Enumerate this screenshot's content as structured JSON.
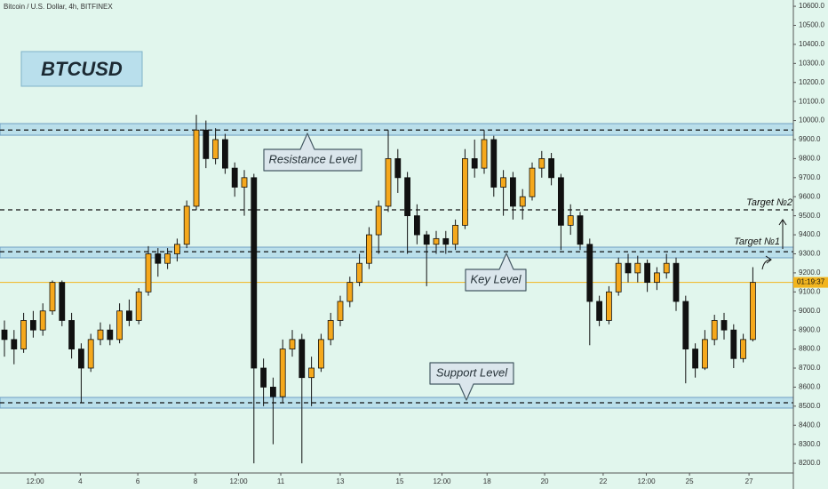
{
  "chart_data": {
    "type": "candlestick",
    "title": "Bitcoin / U.S. Dollar, 4h, BITFINEX",
    "symbol_label": "BTCUSD",
    "background": "#e1f6ed",
    "up_color": "#f5a81c",
    "down_color": "#111111",
    "candles": [
      [
        8900,
        8950,
        8760,
        8850
      ],
      [
        8850,
        8900,
        8720,
        8800
      ],
      [
        8800,
        8990,
        8780,
        8950
      ],
      [
        8950,
        9000,
        8860,
        8900
      ],
      [
        8900,
        9040,
        8870,
        9000
      ],
      [
        9000,
        9160,
        8980,
        9150
      ],
      [
        9150,
        9160,
        8920,
        8950
      ],
      [
        8950,
        8990,
        8750,
        8800
      ],
      [
        8800,
        8830,
        8520,
        8700
      ],
      [
        8700,
        8880,
        8680,
        8850
      ],
      [
        8850,
        8940,
        8820,
        8900
      ],
      [
        8900,
        8930,
        8820,
        8850
      ],
      [
        8850,
        9040,
        8830,
        9000
      ],
      [
        9000,
        9060,
        8920,
        8950
      ],
      [
        8950,
        9120,
        8930,
        9100
      ],
      [
        9100,
        9340,
        9080,
        9300
      ],
      [
        9300,
        9330,
        9180,
        9250
      ],
      [
        9250,
        9330,
        9220,
        9300
      ],
      [
        9300,
        9380,
        9260,
        9350
      ],
      [
        9350,
        9580,
        9330,
        9550
      ],
      [
        9550,
        10030,
        9530,
        9950
      ],
      [
        9950,
        10000,
        9750,
        9800
      ],
      [
        9800,
        9960,
        9770,
        9900
      ],
      [
        9900,
        9930,
        9720,
        9750
      ],
      [
        9750,
        9780,
        9600,
        9650
      ],
      [
        9650,
        9740,
        9500,
        9700
      ],
      [
        9700,
        9720,
        8200,
        8700
      ],
      [
        8700,
        8750,
        8500,
        8600
      ],
      [
        8600,
        8650,
        8300,
        8550
      ],
      [
        8550,
        8850,
        8520,
        8800
      ],
      [
        8800,
        8900,
        8760,
        8850
      ],
      [
        8850,
        8880,
        8200,
        8650
      ],
      [
        8650,
        8760,
        8500,
        8700
      ],
      [
        8700,
        8880,
        8680,
        8850
      ],
      [
        8850,
        8990,
        8820,
        8950
      ],
      [
        8950,
        9080,
        8920,
        9050
      ],
      [
        9050,
        9180,
        9020,
        9150
      ],
      [
        9150,
        9300,
        9130,
        9250
      ],
      [
        9250,
        9440,
        9220,
        9400
      ],
      [
        9400,
        9580,
        9300,
        9550
      ],
      [
        9550,
        9950,
        9520,
        9800
      ],
      [
        9800,
        9850,
        9620,
        9700
      ],
      [
        9700,
        9730,
        9300,
        9500
      ],
      [
        9500,
        9560,
        9350,
        9400
      ],
      [
        9400,
        9420,
        9130,
        9350
      ],
      [
        9350,
        9420,
        9300,
        9380
      ],
      [
        9380,
        9420,
        9300,
        9350
      ],
      [
        9350,
        9480,
        9320,
        9450
      ],
      [
        9450,
        9850,
        9430,
        9800
      ],
      [
        9800,
        9900,
        9700,
        9750
      ],
      [
        9750,
        9950,
        9720,
        9900
      ],
      [
        9900,
        9920,
        9600,
        9650
      ],
      [
        9650,
        9740,
        9500,
        9700
      ],
      [
        9700,
        9730,
        9480,
        9550
      ],
      [
        9550,
        9640,
        9480,
        9600
      ],
      [
        9600,
        9780,
        9580,
        9750
      ],
      [
        9750,
        9840,
        9700,
        9800
      ],
      [
        9800,
        9830,
        9660,
        9700
      ],
      [
        9700,
        9720,
        9320,
        9450
      ],
      [
        9450,
        9560,
        9400,
        9500
      ],
      [
        9500,
        9520,
        9320,
        9350
      ],
      [
        9350,
        9380,
        8820,
        9050
      ],
      [
        9050,
        9080,
        8920,
        8950
      ],
      [
        8950,
        9130,
        8930,
        9100
      ],
      [
        9100,
        9280,
        9080,
        9250
      ],
      [
        9250,
        9300,
        9150,
        9200
      ],
      [
        9200,
        9290,
        9150,
        9250
      ],
      [
        9250,
        9270,
        9100,
        9150
      ],
      [
        9150,
        9230,
        9110,
        9200
      ],
      [
        9200,
        9300,
        9170,
        9250
      ],
      [
        9250,
        9280,
        9000,
        9050
      ],
      [
        9050,
        9080,
        8620,
        8800
      ],
      [
        8800,
        8830,
        8650,
        8700
      ],
      [
        8700,
        8900,
        8690,
        8850
      ],
      [
        8850,
        8980,
        8820,
        8950
      ],
      [
        8950,
        8990,
        8850,
        8900
      ],
      [
        8900,
        8930,
        8700,
        8750
      ],
      [
        8750,
        8880,
        8730,
        8850
      ],
      [
        8850,
        9230,
        8840,
        9150
      ]
    ],
    "xticks": [
      {
        "value": 3.2,
        "label": "12:00"
      },
      {
        "value": 7.9,
        "label": "4"
      },
      {
        "value": 13.9,
        "label": "6"
      },
      {
        "value": 19.9,
        "label": "8"
      },
      {
        "value": 24.4,
        "label": "12:00"
      },
      {
        "value": 28.8,
        "label": "11"
      },
      {
        "value": 35,
        "label": "13"
      },
      {
        "value": 41.2,
        "label": "15"
      },
      {
        "value": 45.6,
        "label": "12:00"
      },
      {
        "value": 50.3,
        "label": "18"
      },
      {
        "value": 56.3,
        "label": "20"
      },
      {
        "value": 62.4,
        "label": "22"
      },
      {
        "value": 66.9,
        "label": "12:00"
      },
      {
        "value": 71.4,
        "label": "25"
      },
      {
        "value": 77.6,
        "label": "27"
      }
    ],
    "ylim": [
      8065,
      10633
    ],
    "yticks": [
      {
        "value": 8200,
        "label": "8200.0"
      },
      {
        "value": 8300,
        "label": "8300.0"
      },
      {
        "value": 8400,
        "label": "8400.0"
      },
      {
        "value": 8500,
        "label": "8500.0"
      },
      {
        "value": 8600,
        "label": "8600.0"
      },
      {
        "value": 8700,
        "label": "8700.0"
      },
      {
        "value": 8800,
        "label": "8800.0"
      },
      {
        "value": 8900,
        "label": "8900.0"
      },
      {
        "value": 9000,
        "label": "9000.0"
      },
      {
        "value": 9100,
        "label": "9100.0"
      },
      {
        "value": 9200,
        "label": "9200.0"
      },
      {
        "value": 9300,
        "label": "9300.0"
      },
      {
        "value": 9400,
        "label": "9400.0"
      },
      {
        "value": 9500,
        "label": "9500.0"
      },
      {
        "value": 9600,
        "label": "9600.0"
      },
      {
        "value": 9700,
        "label": "9700.0"
      },
      {
        "value": 9800,
        "label": "9800.0"
      },
      {
        "value": 9900,
        "label": "9900.0"
      },
      {
        "value": 10000,
        "label": "10000.0"
      },
      {
        "value": 10100,
        "label": "10100.0"
      },
      {
        "value": 10200,
        "label": "10200.0"
      },
      {
        "value": 10300,
        "label": "10300.0"
      },
      {
        "value": 10400,
        "label": "10400.0"
      },
      {
        "value": 10500,
        "label": "10500.0"
      },
      {
        "value": 10600,
        "label": "10600.0"
      }
    ],
    "zones": [
      {
        "label": "Resistance Level",
        "low": 9923,
        "high": 9984,
        "line": 9950
      },
      {
        "label": "Key Level",
        "low": 9279,
        "high": 9335,
        "line": 9311
      },
      {
        "label": "Support Level",
        "low": 8490,
        "high": 8546,
        "line": 8518
      }
    ],
    "targets": [
      {
        "label": "Target №2",
        "value": 9531
      },
      {
        "label": "Target №1",
        "value": 9311
      }
    ],
    "price_line": {
      "value": 9150,
      "label": "01:19:37",
      "color": "#f2b51f"
    }
  }
}
